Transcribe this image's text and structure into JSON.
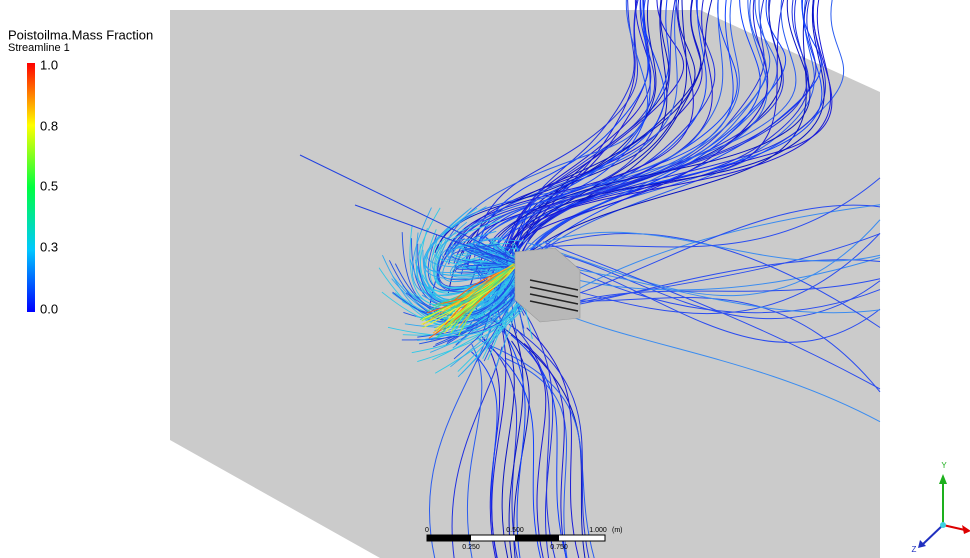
{
  "legend": {
    "title": "Poistoilma.Mass Fraction",
    "subtitle": "Streamline 1",
    "labels": [
      "1.0",
      "0.8",
      "0.5",
      "0.3",
      "0.0"
    ]
  },
  "scale_bar": {
    "top_labels": [
      "0",
      "0.500",
      "1.000",
      "(m)"
    ],
    "bottom_labels": [
      "0.250",
      "0.750"
    ]
  },
  "axes": {
    "y": "Y",
    "z": "Z"
  }
}
